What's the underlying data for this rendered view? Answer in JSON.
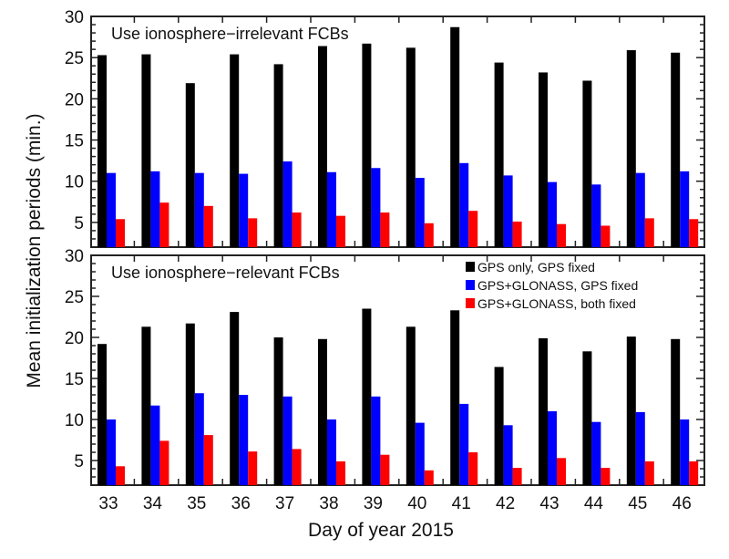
{
  "chart_data": {
    "type": "bar",
    "ylabel": "Mean initialization periods (min.)",
    "xlabel": "Day of year 2015",
    "categories": [
      "33",
      "34",
      "35",
      "36",
      "37",
      "38",
      "39",
      "40",
      "41",
      "42",
      "43",
      "44",
      "45",
      "46"
    ],
    "ylim": [
      2,
      30
    ],
    "yticks": [
      "5",
      "10",
      "15",
      "20",
      "25",
      "30"
    ],
    "legend": {
      "placement": "top-right",
      "panel": "bottom"
    },
    "colors": {
      "GPS only, GPS fixed": "#000000",
      "GPS+GLONASS, GPS fixed": "#0000ff",
      "GPS+GLONASS, both fixed": "#ff0000"
    },
    "panels": [
      {
        "title": "Use ionosphere−irrelevant FCBs",
        "series": [
          {
            "name": "GPS only, GPS fixed",
            "values": [
              25.3,
              25.4,
              21.9,
              25.4,
              24.2,
              26.4,
              26.7,
              26.2,
              28.7,
              24.4,
              23.2,
              22.2,
              25.9,
              25.6
            ]
          },
          {
            "name": "GPS+GLONASS, GPS fixed",
            "values": [
              11.0,
              11.2,
              11.0,
              10.9,
              12.4,
              11.1,
              11.6,
              10.4,
              12.2,
              10.7,
              9.9,
              9.6,
              11.0,
              11.2
            ]
          },
          {
            "name": "GPS+GLONASS, both fixed",
            "values": [
              5.4,
              7.4,
              7.0,
              5.5,
              6.2,
              5.8,
              6.2,
              4.9,
              6.4,
              5.1,
              4.8,
              4.6,
              5.5,
              5.4
            ]
          }
        ]
      },
      {
        "title": "Use ionosphere−relevant FCBs",
        "series": [
          {
            "name": "GPS only, GPS fixed",
            "values": [
              19.2,
              21.3,
              21.7,
              23.1,
              20.0,
              19.8,
              23.5,
              21.3,
              23.3,
              16.4,
              19.9,
              18.3,
              20.1,
              19.8
            ]
          },
          {
            "name": "GPS+GLONASS, GPS fixed",
            "values": [
              10.0,
              11.7,
              13.2,
              13.0,
              12.8,
              10.0,
              12.8,
              9.6,
              11.9,
              9.3,
              11.0,
              9.7,
              10.9,
              10.0
            ]
          },
          {
            "name": "GPS+GLONASS, both fixed",
            "values": [
              4.3,
              7.4,
              8.1,
              6.1,
              6.4,
              4.9,
              5.7,
              3.8,
              6.0,
              4.1,
              5.3,
              4.1,
              4.9,
              4.9
            ]
          }
        ]
      }
    ]
  }
}
